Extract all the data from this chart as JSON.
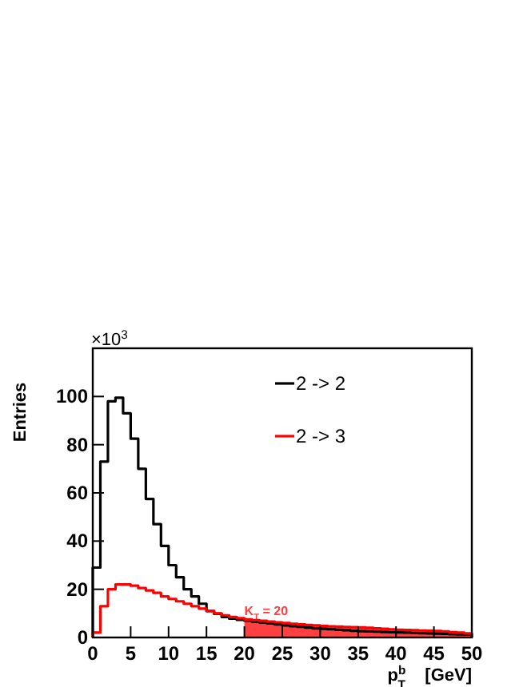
{
  "chart_data": {
    "type": "histogram",
    "xlabel": "p$^{b}$$_{T}$    [GeV]",
    "ylabel": "Entries",
    "annotations": [
      "×10$^{3}$"
    ],
    "bins": [
      0,
      1,
      2,
      3,
      4,
      5,
      6,
      7,
      8,
      9,
      10,
      11,
      12,
      13,
      14,
      15,
      16,
      17,
      18,
      19,
      20,
      21,
      22,
      23,
      24,
      25,
      26,
      27,
      28,
      29,
      30,
      31,
      32,
      33,
      34,
      35,
      36,
      37,
      38,
      39,
      40,
      41,
      42,
      43,
      44,
      45,
      46,
      47,
      48,
      49,
      50
    ],
    "series": [
      {
        "name": "2 -> 2",
        "color": "#000000",
        "values": [
          29,
          73,
          98,
          99.5,
          93,
          82.5,
          70,
          57.5,
          47,
          38,
          30,
          25,
          20,
          17,
          14,
          11,
          9.8,
          8.5,
          7.8,
          7.3,
          7,
          6.6,
          6.2,
          5.8,
          5.4,
          5,
          4.7,
          4.4,
          4.1,
          3.8,
          3.6,
          3.4,
          3.2,
          3,
          2.8,
          2.6,
          2.5,
          2.4,
          2.3,
          2.2,
          2.1,
          2,
          1.9,
          1.8,
          1.7,
          1.6,
          1.5,
          1.4,
          1.3,
          1.2
        ]
      },
      {
        "name": "2 -> 3",
        "color": "#ff0000",
        "values": [
          2,
          13,
          20,
          22,
          22,
          21.5,
          20.5,
          19.5,
          18.5,
          17,
          16,
          15,
          14,
          13,
          12,
          11,
          10,
          9.2,
          8.5,
          8,
          7.5,
          7.2,
          6.9,
          6.6,
          6.3,
          6,
          5.7,
          5.4,
          5.2,
          5,
          4.8,
          4.6,
          4.5,
          4.4,
          4.3,
          4.2,
          4,
          3.8,
          3.6,
          3.4,
          3.2,
          3.1,
          3,
          2.9,
          2.8,
          2.7,
          2.5,
          2.2,
          2,
          1.7
        ]
      }
    ],
    "bands": [
      {
        "axis": "x",
        "from": 20,
        "to": 50,
        "label": "K$_{T}$ = 20",
        "color": "#ff4040"
      }
    ],
    "xlim": [
      0,
      50
    ],
    "xticks": [
      0,
      5,
      10,
      15,
      20,
      25,
      30,
      35,
      40,
      45,
      50
    ],
    "ylim": [
      0,
      120
    ],
    "yticks": [
      0,
      20,
      40,
      60,
      80,
      100
    ],
    "legend": "top right"
  }
}
